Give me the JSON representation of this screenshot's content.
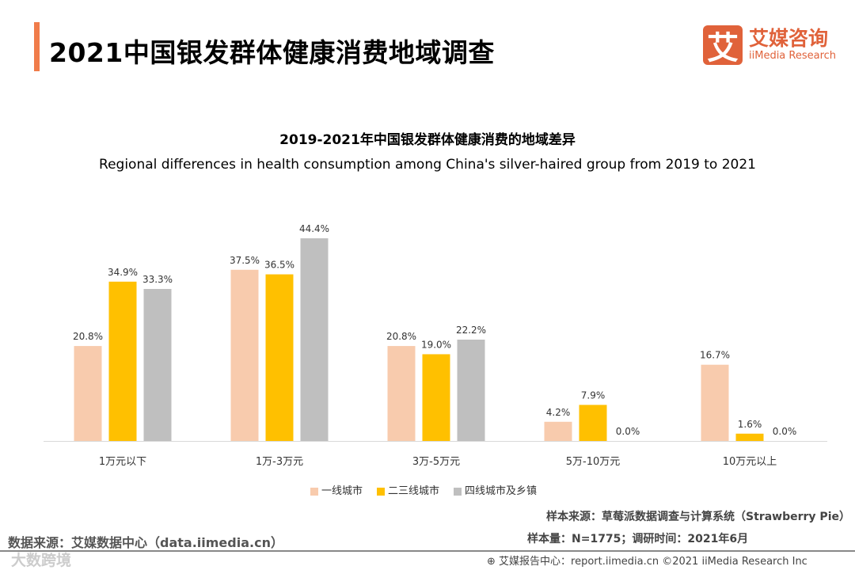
{
  "header": {
    "title": "2021中国银发群体健康消费地域调查",
    "logo_mark": "艾",
    "logo_cn": "艾媒咨询",
    "logo_en": "iiMedia Research"
  },
  "chart_data": {
    "type": "bar",
    "title": "2019-2021年中国银发群体健康消费的地域差异",
    "subtitle": "Regional differences in health consumption among China's silver-haired group from 2019 to 2021",
    "categories": [
      "1万元以下",
      "1万-3万元",
      "3万-5万元",
      "5万-10万元",
      "10万元以上"
    ],
    "series": [
      {
        "name": "一线城市",
        "color": "#F8CBAD",
        "values": [
          20.8,
          37.5,
          20.8,
          4.2,
          16.7
        ]
      },
      {
        "name": "二三线城市",
        "color": "#FFC000",
        "values": [
          34.9,
          36.5,
          19.0,
          7.9,
          1.6
        ]
      },
      {
        "name": "四线城市及乡镇",
        "color": "#BFBFBF",
        "values": [
          33.3,
          44.4,
          22.2,
          0.0,
          0.0
        ]
      }
    ],
    "unit": "%",
    "ylim": [
      0,
      45
    ],
    "grid": false,
    "legend": "bottom"
  },
  "footer": {
    "source_left": "数据来源：艾媒数据中心（data.iimedia.cn）",
    "sample_source": "样本来源：草莓派数据调查与计算系统（Strawberry Pie）",
    "sample_size": "样本量：N=1775；调研时间：2021年6月",
    "report": "艾媒报告中心：report.iimedia.cn  ©2021  iiMedia Research Inc",
    "watermark": "大数跨境"
  }
}
